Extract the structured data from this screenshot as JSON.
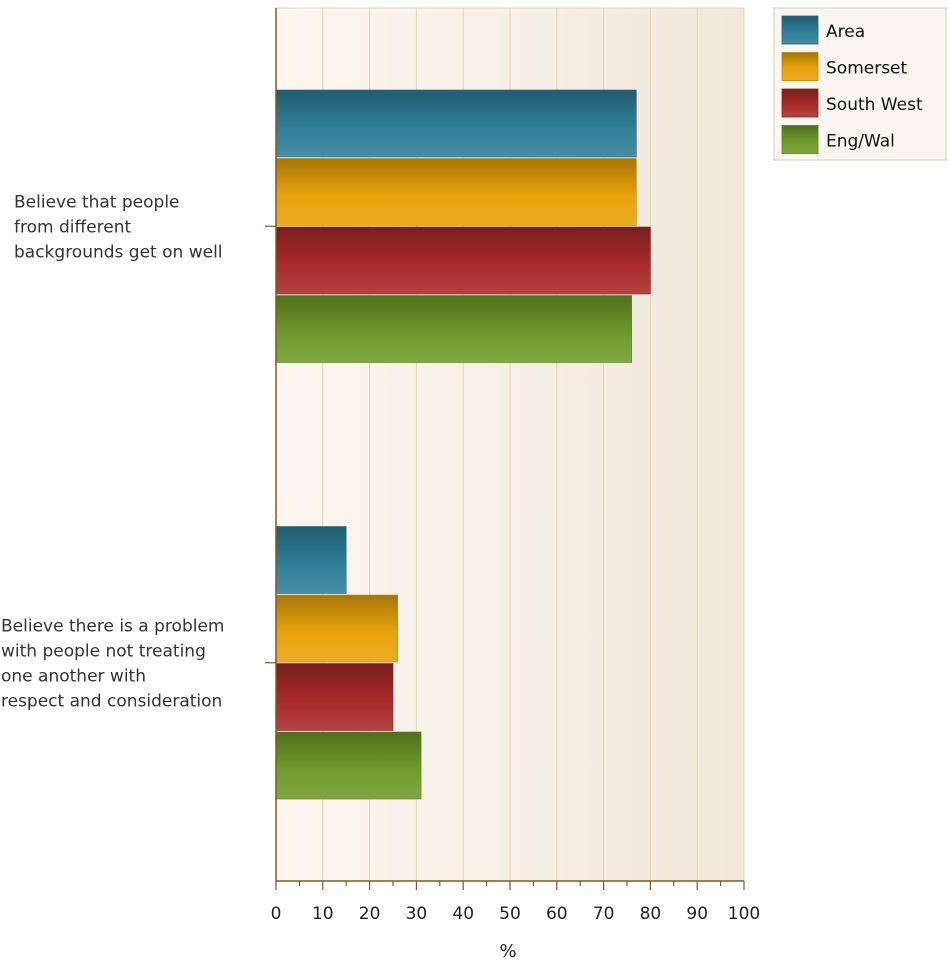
{
  "chart_data": {
    "type": "bar",
    "orientation": "horizontal",
    "categories": [
      "Believe that people from different backgrounds get on well",
      "Believe there is a problem with people not treating one another with respect and consideration"
    ],
    "category_label_lines": [
      [
        "Believe that people",
        "from different",
        "backgrounds get on well"
      ],
      [
        "Believe there is a problem",
        "with people not treating",
        "one another with",
        "respect and consideration"
      ]
    ],
    "series": [
      {
        "name": "Area",
        "values": [
          77,
          15
        ],
        "color": "#2f7f99"
      },
      {
        "name": "Somerset",
        "values": [
          77,
          26
        ],
        "color": "#e8a20a"
      },
      {
        "name": "South West",
        "values": [
          80,
          25
        ],
        "color": "#a82a2a"
      },
      {
        "name": "Eng/Wal",
        "values": [
          76,
          31
        ],
        "color": "#6f9a2a"
      }
    ],
    "xlabel": "%",
    "xlim": [
      0,
      100
    ],
    "xticks": [
      "0",
      "10",
      "20",
      "30",
      "40",
      "50",
      "60",
      "70",
      "80",
      "90",
      "100"
    ],
    "grid": true,
    "legend_position": "top-right",
    "background_color": "#f8efe2"
  }
}
